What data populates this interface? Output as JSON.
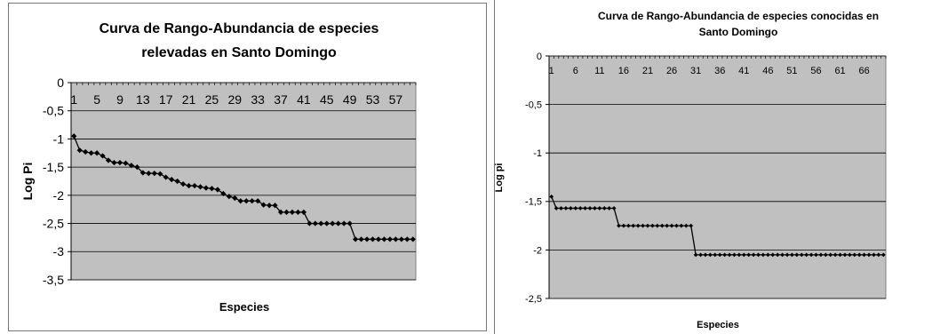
{
  "chart_data": [
    {
      "type": "line",
      "title": [
        "Curva de Rango-Abundancia de especies",
        "relevadas en Santo Domingo"
      ],
      "xlabel": "Especies",
      "ylabel": "Log Pi",
      "ylim": [
        -3.5,
        0
      ],
      "yticks": [
        "0",
        "-0,5",
        "-1",
        "-1,5",
        "-2",
        "-2,5",
        "-3",
        "-3,5"
      ],
      "ytick_values": [
        0,
        -0.5,
        -1,
        -1.5,
        -2,
        -2.5,
        -3,
        -3.5
      ],
      "xtick_labels": [
        "1",
        "5",
        "9",
        "13",
        "17",
        "21",
        "25",
        "29",
        "33",
        "37",
        "41",
        "45",
        "49",
        "53",
        "57"
      ],
      "xtick_values": [
        1,
        5,
        9,
        13,
        17,
        21,
        25,
        29,
        33,
        37,
        41,
        45,
        49,
        53,
        57
      ],
      "x_count": 60,
      "grid": true,
      "plot_bg": "#c0c0c0",
      "line_color": "#000000",
      "values": [
        -0.95,
        -1.2,
        -1.23,
        -1.25,
        -1.25,
        -1.3,
        -1.38,
        -1.42,
        -1.42,
        -1.43,
        -1.47,
        -1.5,
        -1.6,
        -1.61,
        -1.61,
        -1.62,
        -1.68,
        -1.72,
        -1.75,
        -1.8,
        -1.83,
        -1.83,
        -1.85,
        -1.87,
        -1.88,
        -1.9,
        -1.97,
        -2.02,
        -2.05,
        -2.1,
        -2.1,
        -2.1,
        -2.1,
        -2.17,
        -2.18,
        -2.18,
        -2.3,
        -2.3,
        -2.3,
        -2.3,
        -2.3,
        -2.5,
        -2.5,
        -2.5,
        -2.5,
        -2.5,
        -2.5,
        -2.5,
        -2.5,
        -2.78,
        -2.78,
        -2.78,
        -2.78,
        -2.78,
        -2.78,
        -2.78,
        -2.78,
        -2.78,
        -2.78,
        -2.78
      ]
    },
    {
      "type": "line",
      "title": [
        "Curva  de Rango-Abundancia  de especies conocidas en",
        "Santo Domingo"
      ],
      "xlabel": "Especies",
      "ylabel": "Log pi",
      "ylim": [
        -2.5,
        0
      ],
      "yticks": [
        "0",
        "-0,5",
        "-1",
        "-1,5",
        "-2",
        "-2,5"
      ],
      "ytick_values": [
        0,
        -0.5,
        -1,
        -1.5,
        -2,
        -2.5
      ],
      "xtick_labels": [
        "1",
        "6",
        "11",
        "16",
        "21",
        "26",
        "31",
        "36",
        "41",
        "46",
        "51",
        "56",
        "61",
        "66"
      ],
      "xtick_values": [
        1,
        6,
        11,
        16,
        21,
        26,
        31,
        36,
        41,
        46,
        51,
        56,
        61,
        66
      ],
      "x_count": 70,
      "grid": true,
      "plot_bg": "#c0c0c0",
      "line_color": "#000000",
      "values": [
        -1.45,
        -1.57,
        -1.57,
        -1.57,
        -1.57,
        -1.57,
        -1.57,
        -1.57,
        -1.57,
        -1.57,
        -1.57,
        -1.57,
        -1.57,
        -1.57,
        -1.75,
        -1.75,
        -1.75,
        -1.75,
        -1.75,
        -1.75,
        -1.75,
        -1.75,
        -1.75,
        -1.75,
        -1.75,
        -1.75,
        -1.75,
        -1.75,
        -1.75,
        -1.75,
        -2.05,
        -2.05,
        -2.05,
        -2.05,
        -2.05,
        -2.05,
        -2.05,
        -2.05,
        -2.05,
        -2.05,
        -2.05,
        -2.05,
        -2.05,
        -2.05,
        -2.05,
        -2.05,
        -2.05,
        -2.05,
        -2.05,
        -2.05,
        -2.05,
        -2.05,
        -2.05,
        -2.05,
        -2.05,
        -2.05,
        -2.05,
        -2.05,
        -2.05,
        -2.05,
        -2.05,
        -2.05,
        -2.05,
        -2.05,
        -2.05,
        -2.05,
        -2.05,
        -2.05,
        -2.05,
        -2.05
      ]
    }
  ]
}
